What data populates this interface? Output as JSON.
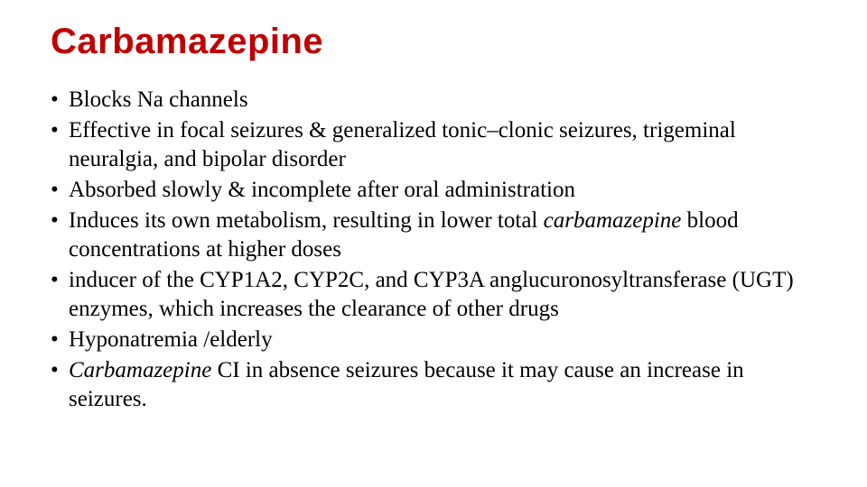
{
  "slide": {
    "title": "Carbamazepine",
    "title_color": "#c00000",
    "title_fontsize": 40,
    "title_font": "Arial",
    "body_fontsize": 25,
    "body_color": "#000000",
    "body_font": "Georgia",
    "background_color": "#ffffff",
    "bullets": {
      "b0": "Blocks Na channels",
      "b1": "Effective in focal seizures & generalized tonic–clonic seizures, trigeminal neuralgia, and bipolar disorder",
      "b2": "Absorbed slowly & incomplete after oral administration",
      "b3_pre": "Induces its own metabolism, resulting in lower total ",
      "b3_ital": "carbamazepine",
      "b3_post": " blood concentrations at higher doses",
      "b4": "inducer of the CYP1A2, CYP2C, and CYP3A anglucuronosyltransferase (UGT) enzymes, which increases the clearance of other drugs",
      "b5": "Hyponatremia /elderly",
      "b6_ital": "Carbamazepine",
      "b6_post": " CI in absence seizures because it may cause an increase in seizures."
    }
  }
}
